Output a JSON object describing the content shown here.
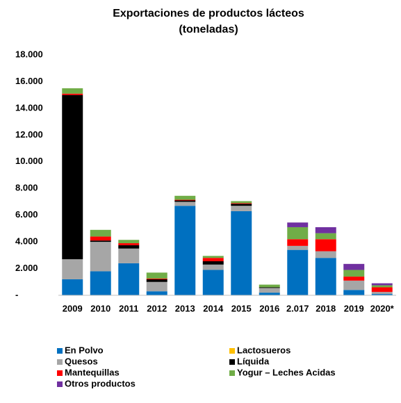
{
  "chart_data": {
    "type": "stacked_bar",
    "title": "Exportaciones de productos lácteos",
    "subtitle": "(toneladas)",
    "categories": [
      "2009",
      "2010",
      "2011",
      "2012",
      "2013",
      "2014",
      "2015",
      "2016",
      "2.017",
      "2018",
      "2019",
      "2020*"
    ],
    "series": [
      {
        "name": "En Polvo",
        "color": "#0070c0",
        "values": [
          1200,
          1800,
          2400,
          300,
          6700,
          1900,
          6300,
          200,
          3400,
          2800,
          400,
          100
        ]
      },
      {
        "name": "Lactosueros",
        "color": "#ffc000",
        "values": [
          0,
          0,
          0,
          0,
          0,
          0,
          0,
          0,
          0,
          0,
          0,
          0
        ]
      },
      {
        "name": "Quesos",
        "color": "#a6a6a6",
        "values": [
          1500,
          2200,
          1100,
          700,
          300,
          400,
          400,
          350,
          300,
          500,
          700,
          150
        ]
      },
      {
        "name": "Líquida",
        "color": "#000000",
        "values": [
          12300,
          100,
          250,
          200,
          100,
          250,
          150,
          50,
          0,
          0,
          0,
          0
        ]
      },
      {
        "name": "Mantequillas",
        "color": "#ff0000",
        "values": [
          100,
          300,
          150,
          50,
          50,
          250,
          50,
          0,
          500,
          900,
          300,
          350
        ]
      },
      {
        "name": "Yogur – Leches Acidas",
        "color": "#70ad47",
        "values": [
          400,
          500,
          250,
          450,
          300,
          150,
          150,
          200,
          900,
          450,
          500,
          150
        ]
      },
      {
        "name": "Otros productos",
        "color": "#7030a0",
        "values": [
          0,
          0,
          0,
          0,
          0,
          0,
          0,
          0,
          350,
          450,
          450,
          150
        ]
      }
    ],
    "ylim": [
      0,
      18000
    ],
    "yticks": [
      {
        "value": 0,
        "label": "-"
      },
      {
        "value": 2000,
        "label": "2.000"
      },
      {
        "value": 4000,
        "label": "4.000"
      },
      {
        "value": 6000,
        "label": "6.000"
      },
      {
        "value": 8000,
        "label": "8.000"
      },
      {
        "value": 10000,
        "label": "10.000"
      },
      {
        "value": 12000,
        "label": "12.000"
      },
      {
        "value": 14000,
        "label": "14.000"
      },
      {
        "value": 16000,
        "label": "16.000"
      },
      {
        "value": 18000,
        "label": "18.000"
      }
    ],
    "grid": false
  }
}
